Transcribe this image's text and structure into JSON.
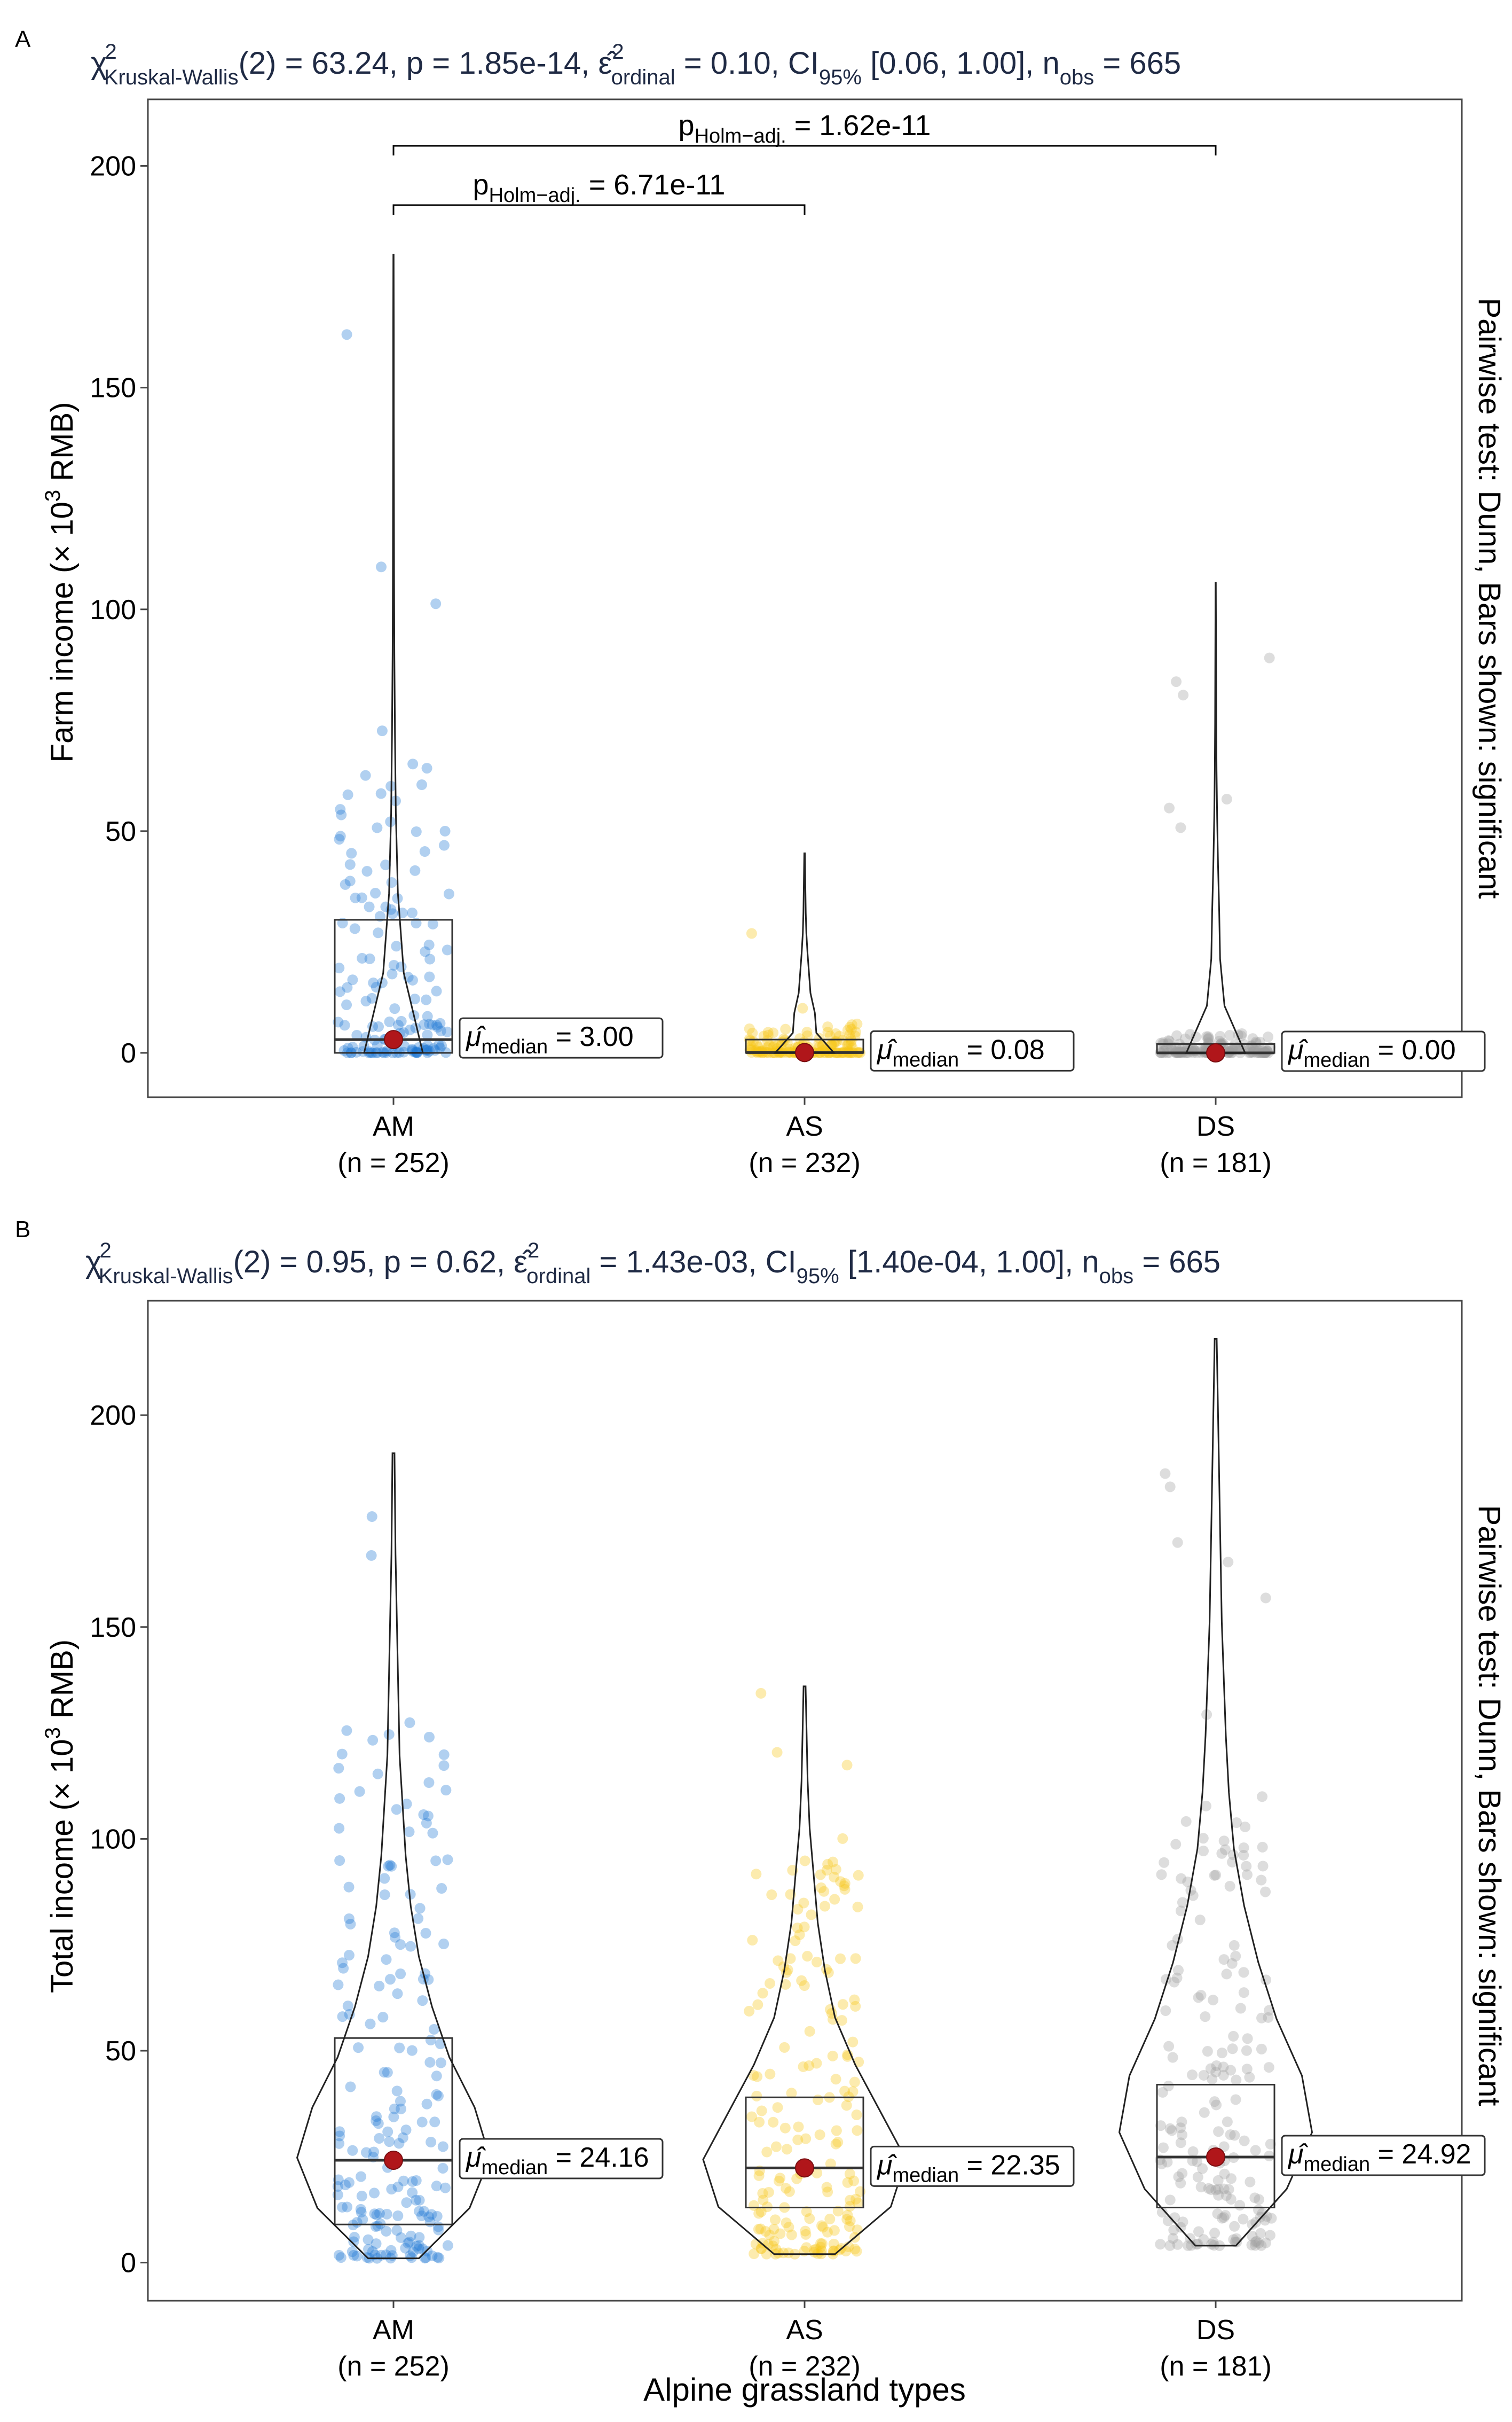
{
  "figure": {
    "xlabel": "Alpine grassland types"
  },
  "chart_data": [
    {
      "panel": "A",
      "type": "violin-box-scatter",
      "ylabel": "Farm income (× 10³ RMB)",
      "ylabel_base": "Farm income (× 10",
      "ylabel_sup": "3",
      "ylabel_unit": " RMB)",
      "ylim": [
        -10,
        215
      ],
      "yticks": [
        0,
        50,
        100,
        150,
        200
      ],
      "right_label": "Pairwise test: Dunn, Bars shown: significant",
      "subtitle": {
        "chi": "χ",
        "chi_sup": "2",
        "chi_sub": "Kruskal-Wallis",
        "df_stat": "(2) = 63.24, p = 1.85e-14, ",
        "eps": "ε̂",
        "eps_sup": "2",
        "eps_sub": "ordinal",
        "effect": " = 0.10, CI",
        "ci_sub": "95%",
        "ci": " [0.06, 1.00], n",
        "n_sub": "obs",
        "n": " = 665"
      },
      "groups": [
        {
          "name": "AM",
          "n_label": "(n = 252)",
          "color": "#1f77d4",
          "median": 3.0,
          "q1": 0.0,
          "q3": 30.0,
          "min": 0.0,
          "max": 180.0,
          "median_label_sym": "μ̂",
          "median_label_sub": "median",
          "median_label_val": " = 3.00"
        },
        {
          "name": "AS",
          "n_label": "(n = 232)",
          "color": "#f5c518",
          "median": 0.08,
          "q1": 0.0,
          "q3": 3.0,
          "min": 0.0,
          "max": 45.0,
          "median_label_sym": "μ̂",
          "median_label_sub": "median",
          "median_label_val": " = 0.08"
        },
        {
          "name": "DS",
          "n_label": "(n = 181)",
          "color": "#9e9e9e",
          "median": 0.0,
          "q1": 0.0,
          "q3": 2.0,
          "min": 0.0,
          "max": 106.0,
          "median_label_sym": "μ̂",
          "median_label_sub": "median",
          "median_label_val": " = 0.00"
        }
      ],
      "comparisons": [
        {
          "groups": [
            "AM",
            "AS"
          ],
          "p_label": "p",
          "p_sub": "Holm−adj.",
          "p_val": " = 6.71e-11"
        },
        {
          "groups": [
            "AM",
            "DS"
          ],
          "p_label": "p",
          "p_sub": "Holm−adj.",
          "p_val": " = 1.62e-11"
        }
      ]
    },
    {
      "panel": "B",
      "type": "violin-box-scatter",
      "ylabel": "Total income (× 10³ RMB)",
      "ylabel_base": "Total income (× 10",
      "ylabel_sup": "3",
      "ylabel_unit": " RMB)",
      "ylim": [
        -9,
        227
      ],
      "yticks": [
        0,
        50,
        100,
        150,
        200
      ],
      "right_label": "Pairwise test: Dunn, Bars shown: significant",
      "subtitle": {
        "chi": "χ",
        "chi_sup": "2",
        "chi_sub": "Kruskal-Wallis",
        "df_stat": "(2) = 0.95, p = 0.62, ",
        "eps": "ε̂",
        "eps_sup": "2",
        "eps_sub": "ordinal",
        "effect": " = 1.43e-03, CI",
        "ci_sub": "95%",
        "ci": " [1.40e-04, 1.00], n",
        "n_sub": "obs",
        "n": " = 665"
      },
      "groups": [
        {
          "name": "AM",
          "n_label": "(n = 252)",
          "color": "#1f77d4",
          "median": 24.16,
          "q1": 9.0,
          "q3": 53.0,
          "min": 1.0,
          "max": 191.0,
          "median_label_sym": "μ̂",
          "median_label_sub": "median",
          "median_label_val": " = 24.16"
        },
        {
          "name": "AS",
          "n_label": "(n = 232)",
          "color": "#f5c518",
          "median": 22.35,
          "q1": 13.0,
          "q3": 39.0,
          "min": 2.0,
          "max": 136.0,
          "median_label_sym": "μ̂",
          "median_label_sub": "median",
          "median_label_val": " = 22.35"
        },
        {
          "name": "DS",
          "n_label": "(n = 181)",
          "color": "#9e9e9e",
          "median": 24.92,
          "q1": 13.0,
          "q3": 42.0,
          "min": 4.0,
          "max": 218.0,
          "median_label_sym": "μ̂",
          "median_label_sub": "median",
          "median_label_val": " = 24.92"
        }
      ],
      "comparisons": []
    }
  ]
}
